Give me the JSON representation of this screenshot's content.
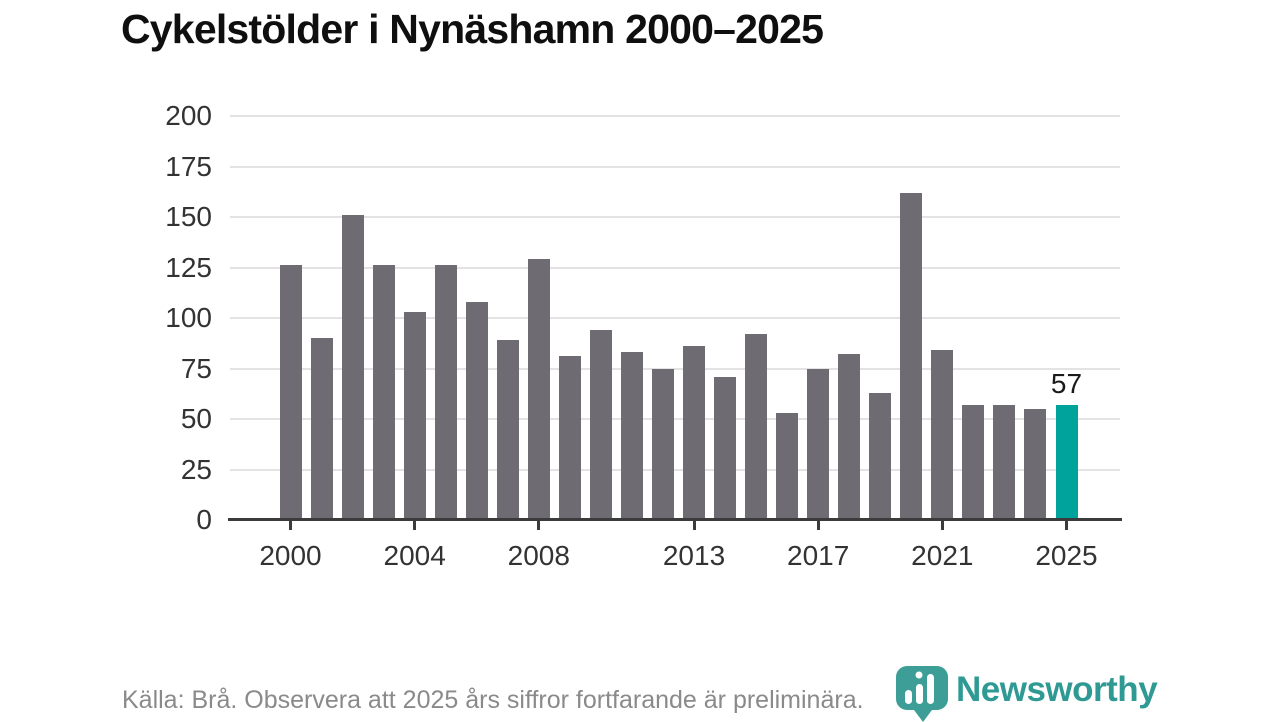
{
  "chart_data": {
    "type": "bar",
    "title": "Cykelstölder i Nynäshamn 2000–2025",
    "years": [
      2000,
      2001,
      2002,
      2003,
      2004,
      2005,
      2006,
      2007,
      2008,
      2009,
      2010,
      2011,
      2012,
      2013,
      2014,
      2015,
      2016,
      2017,
      2018,
      2019,
      2020,
      2021,
      2022,
      2023,
      2024,
      2025
    ],
    "values": [
      126,
      90,
      151,
      126,
      103,
      126,
      108,
      89,
      129,
      81,
      94,
      83,
      75,
      86,
      71,
      92,
      53,
      75,
      82,
      63,
      162,
      84,
      57,
      57,
      55,
      57
    ],
    "ylim": [
      0,
      200
    ],
    "yticks": [
      0,
      25,
      50,
      75,
      100,
      125,
      150,
      175,
      200
    ],
    "xticks": [
      2000,
      2004,
      2008,
      2013,
      2017,
      2021,
      2025
    ],
    "grid": true,
    "legend": "none",
    "bar_color": "#6f6b73",
    "highlight_year": 2025,
    "highlight_color": "#00a39b",
    "highlight_value_label": "57"
  },
  "footer": {
    "source_note": "Källa: Brå. Observera att 2025 års siffror fortfarande är preliminära."
  },
  "branding": {
    "logo_text": "Newsworthy",
    "logo_icon": "newsworthy-speech-bubble-bar-chart-icon",
    "logo_text_color": "#2f9a93",
    "logo_icon_color": "#3d9e98"
  }
}
